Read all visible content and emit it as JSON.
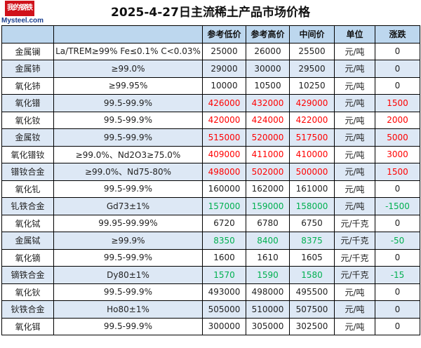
{
  "logo": {
    "mark": "我的钢铁",
    "site": "Mysteel.com"
  },
  "title": "2025-4-27日主流稀土产品市场价格",
  "headers": [
    "",
    "",
    "参考低价",
    "参考高价",
    "中间价",
    "单位",
    "涨跌"
  ],
  "colors": {
    "red": "#ff0000",
    "green": "#00b050",
    "header_bg": "#bdd7ee",
    "alt_row_bg": "#dde8f5"
  },
  "rows": [
    {
      "name": "金属镧",
      "spec": "La/TREM≥99% Fe≤0.1% C<0.03%",
      "low": "25000",
      "high": "26000",
      "mid": "25500",
      "unit": "元/吨",
      "change": "0",
      "trend": "flat"
    },
    {
      "name": "金属铈",
      "spec": "≥99.0%",
      "low": "29000",
      "high": "30000",
      "mid": "29500",
      "unit": "元/吨",
      "change": "0",
      "trend": "flat"
    },
    {
      "name": "氧化铈",
      "spec": "≥99.95%",
      "low": "10000",
      "high": "10500",
      "mid": "10250",
      "unit": "元/吨",
      "change": "0",
      "trend": "flat"
    },
    {
      "name": "氧化镨",
      "spec": "99.5-99.9%",
      "low": "426000",
      "high": "432000",
      "mid": "429000",
      "unit": "元/吨",
      "change": "1500",
      "trend": "up"
    },
    {
      "name": "氧化钕",
      "spec": "99.5-99.9%",
      "low": "420000",
      "high": "424000",
      "mid": "422000",
      "unit": "元/吨",
      "change": "2000",
      "trend": "up"
    },
    {
      "name": "金属钕",
      "spec": "99.5-99.9%",
      "low": "515000",
      "high": "520000",
      "mid": "517500",
      "unit": "元/吨",
      "change": "5000",
      "trend": "up"
    },
    {
      "name": "氧化镨钕",
      "spec": "≥99.0%、Nd2O3≥75.0%",
      "low": "409000",
      "high": "411000",
      "mid": "410000",
      "unit": "元/吨",
      "change": "3000",
      "trend": "up"
    },
    {
      "name": "镨钕合金",
      "spec": "≥99.0%、Nd75-80%",
      "low": "498000",
      "high": "502000",
      "mid": "500000",
      "unit": "元/吨",
      "change": "1500",
      "trend": "up"
    },
    {
      "name": "氧化钆",
      "spec": "99.5-99.9%",
      "low": "160000",
      "high": "162000",
      "mid": "161000",
      "unit": "元/吨",
      "change": "0",
      "trend": "flat"
    },
    {
      "name": "钆铁合金",
      "spec": "Gd73±1%",
      "low": "157000",
      "high": "159000",
      "mid": "158000",
      "unit": "元/吨",
      "change": "-1500",
      "trend": "down"
    },
    {
      "name": "氧化铽",
      "spec": "99.95-99.99%",
      "low": "6720",
      "high": "6780",
      "mid": "6750",
      "unit": "元/千克",
      "change": "0",
      "trend": "flat"
    },
    {
      "name": "金属铽",
      "spec": "≥99.9%",
      "low": "8350",
      "high": "8400",
      "mid": "8375",
      "unit": "元/千克",
      "change": "-50",
      "trend": "down"
    },
    {
      "name": "氧化镝",
      "spec": "99.5-99.9%",
      "low": "1600",
      "high": "1610",
      "mid": "1605",
      "unit": "元/千克",
      "change": "0",
      "trend": "flat"
    },
    {
      "name": "镝铁合金",
      "spec": "Dy80±1%",
      "low": "1570",
      "high": "1590",
      "mid": "1580",
      "unit": "元/千克",
      "change": "-15",
      "trend": "down"
    },
    {
      "name": "氧化钬",
      "spec": "99.5-99.9%",
      "low": "493000",
      "high": "498000",
      "mid": "495500",
      "unit": "元/吨",
      "change": "0",
      "trend": "flat"
    },
    {
      "name": "钬铁合金",
      "spec": "Ho80±1%",
      "low": "505000",
      "high": "510000",
      "mid": "507500",
      "unit": "元/吨",
      "change": "0",
      "trend": "flat"
    },
    {
      "name": "氧化铒",
      "spec": "99.5-99.9%",
      "low": "300000",
      "high": "305000",
      "mid": "302500",
      "unit": "元/吨",
      "change": "0",
      "trend": "flat"
    }
  ]
}
